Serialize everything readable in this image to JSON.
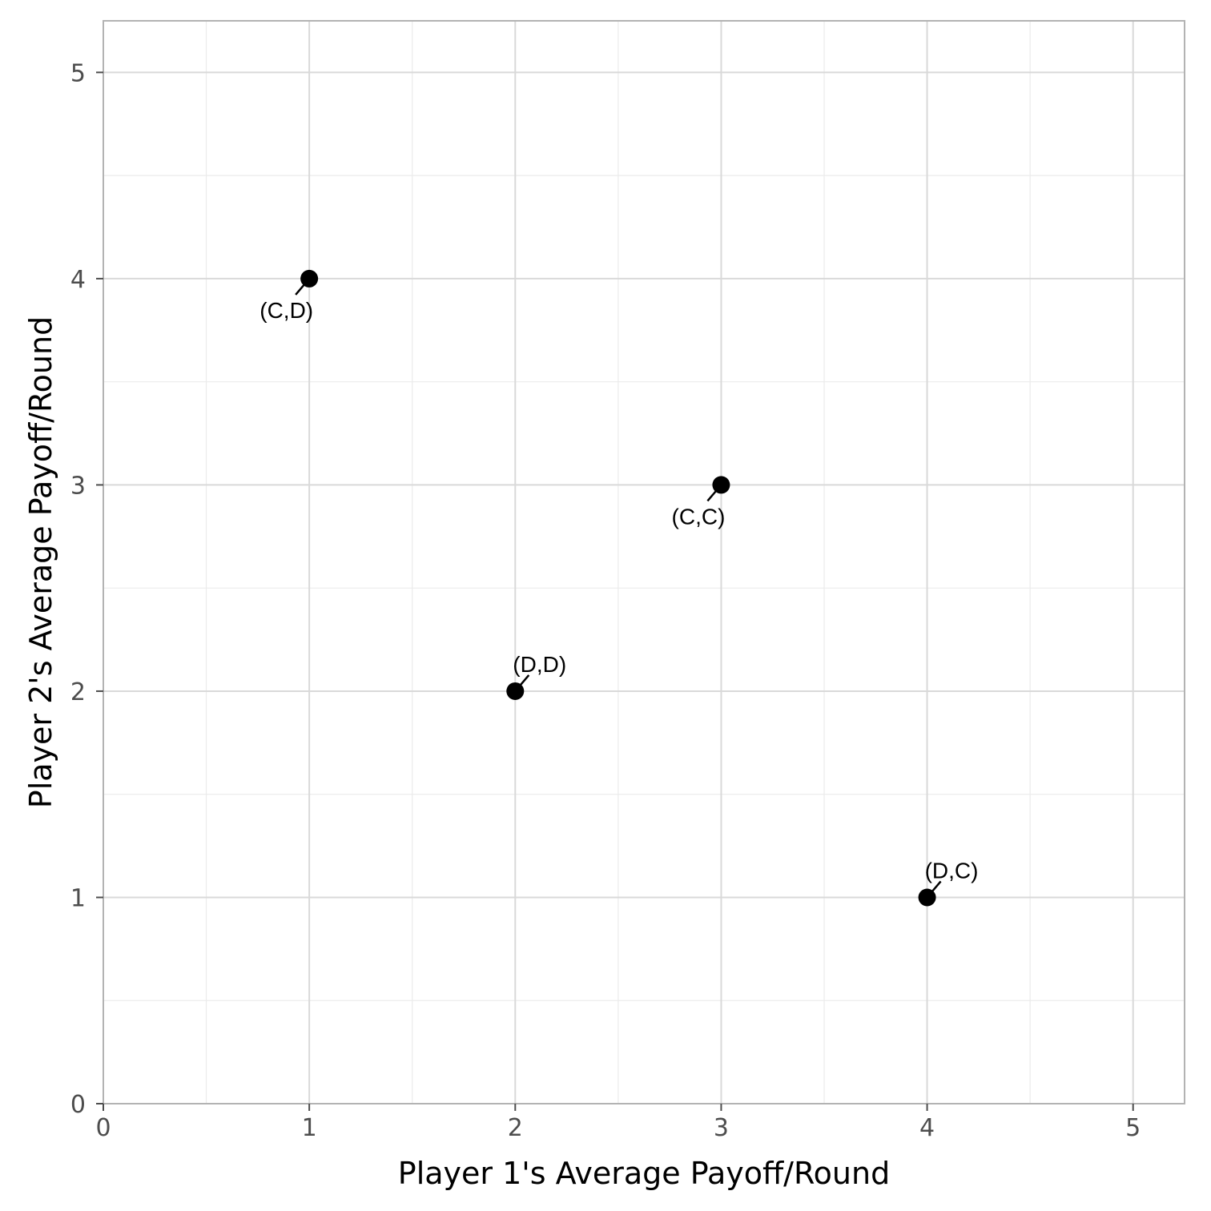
{
  "chart_data": {
    "type": "scatter",
    "title": "",
    "xlabel": "Player 1's Average Payoff/Round",
    "ylabel": "Player 2's Average Payoff/Round",
    "xlim": [
      0,
      5.25
    ],
    "ylim": [
      0,
      5.25
    ],
    "x_ticks": [
      0,
      1,
      2,
      3,
      4,
      5
    ],
    "y_ticks": [
      0,
      1,
      2,
      3,
      4,
      5
    ],
    "grid": true,
    "points": [
      {
        "x": 1,
        "y": 4,
        "label": "(C,D)",
        "label_side": "below-left"
      },
      {
        "x": 3,
        "y": 3,
        "label": "(C,C)",
        "label_side": "below-left"
      },
      {
        "x": 2,
        "y": 2,
        "label": "(D,D)",
        "label_side": "above-right"
      },
      {
        "x": 4,
        "y": 1,
        "label": "(D,C)",
        "label_side": "above-right"
      }
    ],
    "colors": {
      "point": "#000000",
      "grid_major": "#d9d9d9",
      "grid_minor": "#ebebeb",
      "panel_border": "#b3b3b3",
      "tick_text": "#4d4d4d"
    }
  }
}
